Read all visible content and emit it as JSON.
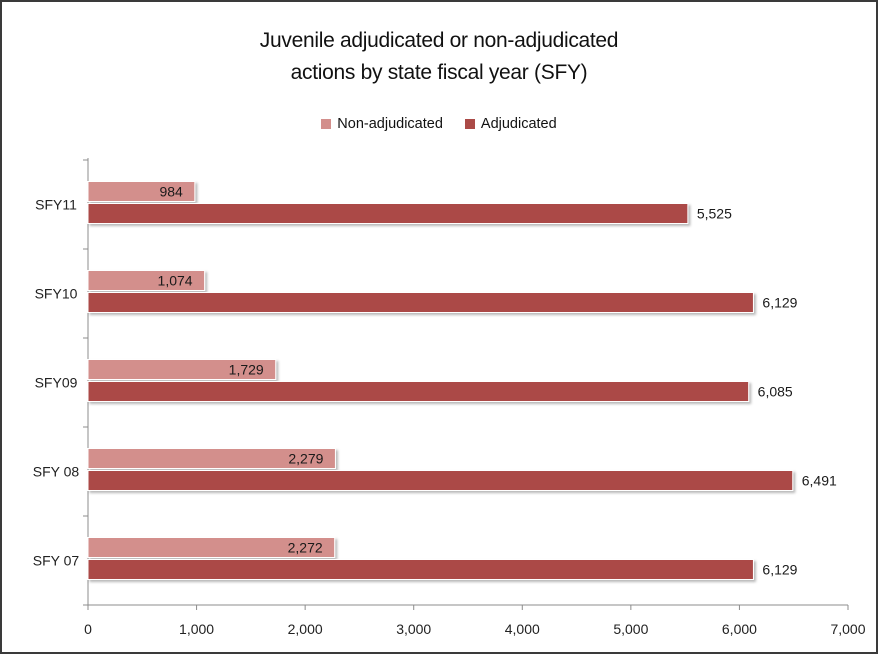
{
  "chart_data": {
    "type": "bar",
    "orientation": "horizontal",
    "title_lines": [
      "Juvenile adjudicated or non-adjudicated",
      "actions by state fiscal year (SFY)"
    ],
    "categories": [
      "SFY11",
      "SFY10",
      "SFY09",
      "SFY 08",
      "SFY 07"
    ],
    "series": [
      {
        "name": "Non-adjudicated",
        "color": "#d38f8c",
        "values": [
          984,
          1074,
          1729,
          2279,
          2272
        ],
        "labels": [
          "984",
          "1,074",
          "1,729",
          "2,279",
          "2,272"
        ]
      },
      {
        "name": "Adjudicated",
        "color": "#ab4a47",
        "values": [
          5525,
          6129,
          6085,
          6491,
          6129
        ],
        "labels": [
          "5,525",
          "6,129",
          "6,085",
          "6,491",
          "6,129"
        ]
      }
    ],
    "xlim": [
      0,
      7000
    ],
    "xticks": [
      0,
      1000,
      2000,
      3000,
      4000,
      5000,
      6000,
      7000
    ],
    "xtick_labels": [
      "0",
      "1,000",
      "2,000",
      "3,000",
      "4,000",
      "5,000",
      "6,000",
      "7,000"
    ],
    "grid": false,
    "legend_position": "top"
  }
}
